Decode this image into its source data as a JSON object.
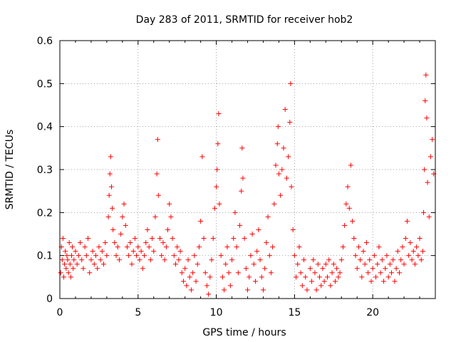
{
  "chart_data": {
    "type": "scatter",
    "title": "Day 283 of 2011, SRMTID for receiver hob2",
    "xlabel": "GPS time / hours",
    "ylabel": "SRMTID / TECUs",
    "xlim": [
      0,
      24
    ],
    "ylim": [
      0,
      0.6
    ],
    "xticks": [
      "0",
      "5",
      "10",
      "15",
      "20"
    ],
    "yticks": [
      "0",
      "0.1",
      "0.2",
      "0.3",
      "0.4",
      "0.5",
      "0.6"
    ],
    "grid": true,
    "marker": "+",
    "color": "#ff0000",
    "series": [
      {
        "name": "SRMTID",
        "points": [
          [
            0.05,
            0.06
          ],
          [
            0.1,
            0.12
          ],
          [
            0.15,
            0.09
          ],
          [
            0.2,
            0.14
          ],
          [
            0.25,
            0.05
          ],
          [
            0.3,
            0.08
          ],
          [
            0.35,
            0.11
          ],
          [
            0.4,
            0.07
          ],
          [
            0.45,
            0.1
          ],
          [
            0.5,
            0.09
          ],
          [
            0.55,
            0.06
          ],
          [
            0.6,
            0.13
          ],
          [
            0.65,
            0.08
          ],
          [
            0.7,
            0.05
          ],
          [
            0.75,
            0.1
          ],
          [
            0.8,
            0.12
          ],
          [
            0.85,
            0.07
          ],
          [
            0.9,
            0.09
          ],
          [
            1.0,
            0.11
          ],
          [
            1.1,
            0.08
          ],
          [
            1.2,
            0.1
          ],
          [
            1.3,
            0.13
          ],
          [
            1.4,
            0.09
          ],
          [
            1.5,
            0.07
          ],
          [
            1.6,
            0.12
          ],
          [
            1.7,
            0.1
          ],
          [
            1.8,
            0.14
          ],
          [
            1.9,
            0.06
          ],
          [
            2.0,
            0.09
          ],
          [
            2.1,
            0.11
          ],
          [
            2.2,
            0.08
          ],
          [
            2.3,
            0.1
          ],
          [
            2.4,
            0.07
          ],
          [
            2.5,
            0.12
          ],
          [
            2.6,
            0.09
          ],
          [
            2.7,
            0.11
          ],
          [
            2.8,
            0.08
          ],
          [
            2.9,
            0.13
          ],
          [
            3.0,
            0.1
          ],
          [
            3.1,
            0.19
          ],
          [
            3.15,
            0.24
          ],
          [
            3.2,
            0.29
          ],
          [
            3.25,
            0.33
          ],
          [
            3.3,
            0.26
          ],
          [
            3.35,
            0.21
          ],
          [
            3.4,
            0.16
          ],
          [
            3.5,
            0.13
          ],
          [
            3.6,
            0.1
          ],
          [
            3.7,
            0.12
          ],
          [
            3.8,
            0.09
          ],
          [
            3.9,
            0.15
          ],
          [
            4.0,
            0.19
          ],
          [
            4.1,
            0.22
          ],
          [
            4.2,
            0.17
          ],
          [
            4.3,
            0.12
          ],
          [
            4.4,
            0.1
          ],
          [
            4.5,
            0.13
          ],
          [
            4.6,
            0.08
          ],
          [
            4.7,
            0.11
          ],
          [
            4.8,
            0.14
          ],
          [
            4.9,
            0.1
          ],
          [
            5.0,
            0.12
          ],
          [
            5.1,
            0.09
          ],
          [
            5.2,
            0.11
          ],
          [
            5.3,
            0.07
          ],
          [
            5.4,
            0.1
          ],
          [
            5.5,
            0.13
          ],
          [
            5.6,
            0.16
          ],
          [
            5.7,
            0.12
          ],
          [
            5.8,
            0.09
          ],
          [
            5.9,
            0.14
          ],
          [
            6.0,
            0.11
          ],
          [
            6.1,
            0.19
          ],
          [
            6.2,
            0.29
          ],
          [
            6.25,
            0.37
          ],
          [
            6.3,
            0.24
          ],
          [
            6.4,
            0.14
          ],
          [
            6.5,
            0.1
          ],
          [
            6.6,
            0.13
          ],
          [
            6.7,
            0.09
          ],
          [
            6.8,
            0.12
          ],
          [
            6.9,
            0.16
          ],
          [
            7.0,
            0.22
          ],
          [
            7.1,
            0.19
          ],
          [
            7.2,
            0.14
          ],
          [
            7.3,
            0.1
          ],
          [
            7.4,
            0.08
          ],
          [
            7.5,
            0.12
          ],
          [
            7.6,
            0.09
          ],
          [
            7.7,
            0.11
          ],
          [
            7.8,
            0.06
          ],
          [
            7.9,
            0.04
          ],
          [
            8.0,
            0.07
          ],
          [
            8.1,
            0.03
          ],
          [
            8.2,
            0.09
          ],
          [
            8.3,
            0.05
          ],
          [
            8.4,
            0.02
          ],
          [
            8.5,
            0.06
          ],
          [
            8.6,
            0.1
          ],
          [
            8.7,
            0.04
          ],
          [
            8.8,
            0.08
          ],
          [
            8.9,
            0.12
          ],
          [
            9.0,
            0.18
          ],
          [
            9.1,
            0.33
          ],
          [
            9.2,
            0.14
          ],
          [
            9.3,
            0.06
          ],
          [
            9.4,
            0.03
          ],
          [
            9.5,
            0.01
          ],
          [
            9.6,
            0.05
          ],
          [
            9.7,
            0.09
          ],
          [
            9.8,
            0.14
          ],
          [
            9.9,
            0.21
          ],
          [
            10.0,
            0.26
          ],
          [
            10.05,
            0.3
          ],
          [
            10.1,
            0.36
          ],
          [
            10.15,
            0.43
          ],
          [
            10.2,
            0.22
          ],
          [
            10.3,
            0.1
          ],
          [
            10.4,
            0.05
          ],
          [
            10.5,
            0.02
          ],
          [
            10.6,
            0.08
          ],
          [
            10.7,
            0.12
          ],
          [
            10.8,
            0.06
          ],
          [
            10.9,
            0.03
          ],
          [
            11.0,
            0.09
          ],
          [
            11.1,
            0.14
          ],
          [
            11.2,
            0.2
          ],
          [
            11.3,
            0.12
          ],
          [
            11.4,
            0.06
          ],
          [
            11.5,
            0.17
          ],
          [
            11.6,
            0.25
          ],
          [
            11.65,
            0.35
          ],
          [
            11.7,
            0.28
          ],
          [
            11.8,
            0.14
          ],
          [
            11.9,
            0.07
          ],
          [
            12.0,
            0.02
          ],
          [
            12.1,
            0.05
          ],
          [
            12.2,
            0.1
          ],
          [
            12.3,
            0.15
          ],
          [
            12.4,
            0.08
          ],
          [
            12.5,
            0.04
          ],
          [
            12.6,
            0.11
          ],
          [
            12.7,
            0.16
          ],
          [
            12.8,
            0.09
          ],
          [
            12.9,
            0.05
          ],
          [
            13.0,
            0.02
          ],
          [
            13.1,
            0.07
          ],
          [
            13.2,
            0.13
          ],
          [
            13.3,
            0.19
          ],
          [
            13.4,
            0.1
          ],
          [
            13.5,
            0.06
          ],
          [
            13.6,
            0.12
          ],
          [
            13.7,
            0.22
          ],
          [
            13.8,
            0.31
          ],
          [
            13.9,
            0.36
          ],
          [
            13.95,
            0.4
          ],
          [
            14.0,
            0.29
          ],
          [
            14.1,
            0.24
          ],
          [
            14.2,
            0.3
          ],
          [
            14.3,
            0.35
          ],
          [
            14.4,
            0.44
          ],
          [
            14.5,
            0.28
          ],
          [
            14.6,
            0.33
          ],
          [
            14.7,
            0.41
          ],
          [
            14.75,
            0.5
          ],
          [
            14.8,
            0.26
          ],
          [
            14.9,
            0.16
          ],
          [
            15.0,
            0.1
          ],
          [
            15.1,
            0.05
          ],
          [
            15.2,
            0.08
          ],
          [
            15.3,
            0.12
          ],
          [
            15.4,
            0.06
          ],
          [
            15.5,
            0.03
          ],
          [
            15.6,
            0.09
          ],
          [
            15.7,
            0.05
          ],
          [
            15.8,
            0.02
          ],
          [
            16.0,
            0.07
          ],
          [
            16.1,
            0.04
          ],
          [
            16.2,
            0.09
          ],
          [
            16.3,
            0.06
          ],
          [
            16.4,
            0.02
          ],
          [
            16.5,
            0.08
          ],
          [
            16.6,
            0.05
          ],
          [
            16.7,
            0.03
          ],
          [
            16.8,
            0.07
          ],
          [
            16.9,
            0.04
          ],
          [
            17.0,
            0.08
          ],
          [
            17.1,
            0.05
          ],
          [
            17.2,
            0.09
          ],
          [
            17.3,
            0.03
          ],
          [
            17.4,
            0.06
          ],
          [
            17.5,
            0.08
          ],
          [
            17.6,
            0.04
          ],
          [
            17.7,
            0.07
          ],
          [
            17.8,
            0.05
          ],
          [
            17.9,
            0.06
          ],
          [
            18.0,
            0.09
          ],
          [
            18.1,
            0.12
          ],
          [
            18.2,
            0.17
          ],
          [
            18.3,
            0.22
          ],
          [
            18.4,
            0.26
          ],
          [
            18.5,
            0.21
          ],
          [
            18.6,
            0.31
          ],
          [
            18.7,
            0.18
          ],
          [
            18.8,
            0.14
          ],
          [
            18.9,
            0.1
          ],
          [
            19.0,
            0.07
          ],
          [
            19.1,
            0.12
          ],
          [
            19.2,
            0.09
          ],
          [
            19.3,
            0.05
          ],
          [
            19.4,
            0.11
          ],
          [
            19.5,
            0.08
          ],
          [
            19.6,
            0.13
          ],
          [
            19.7,
            0.06
          ],
          [
            19.8,
            0.09
          ],
          [
            19.9,
            0.04
          ],
          [
            20.0,
            0.07
          ],
          [
            20.1,
            0.1
          ],
          [
            20.2,
            0.05
          ],
          [
            20.3,
            0.08
          ],
          [
            20.4,
            0.12
          ],
          [
            20.5,
            0.06
          ],
          [
            20.6,
            0.09
          ],
          [
            20.7,
            0.04
          ],
          [
            20.8,
            0.07
          ],
          [
            20.9,
            0.1
          ],
          [
            21.0,
            0.05
          ],
          [
            21.1,
            0.08
          ],
          [
            21.2,
            0.06
          ],
          [
            21.3,
            0.09
          ],
          [
            21.4,
            0.04
          ],
          [
            21.5,
            0.07
          ],
          [
            21.6,
            0.11
          ],
          [
            21.7,
            0.06
          ],
          [
            21.8,
            0.09
          ],
          [
            21.9,
            0.12
          ],
          [
            22.0,
            0.08
          ],
          [
            22.1,
            0.14
          ],
          [
            22.2,
            0.18
          ],
          [
            22.3,
            0.1
          ],
          [
            22.4,
            0.13
          ],
          [
            22.5,
            0.09
          ],
          [
            22.6,
            0.11
          ],
          [
            22.7,
            0.08
          ],
          [
            22.8,
            0.12
          ],
          [
            22.9,
            0.1
          ],
          [
            23.0,
            0.14
          ],
          [
            23.1,
            0.09
          ],
          [
            23.2,
            0.11
          ],
          [
            23.25,
            0.2
          ],
          [
            23.3,
            0.3
          ],
          [
            23.35,
            0.46
          ],
          [
            23.4,
            0.52
          ],
          [
            23.45,
            0.42
          ],
          [
            23.5,
            0.27
          ],
          [
            23.6,
            0.19
          ],
          [
            23.7,
            0.33
          ],
          [
            23.8,
            0.37
          ],
          [
            23.9,
            0.29
          ]
        ]
      }
    ]
  }
}
